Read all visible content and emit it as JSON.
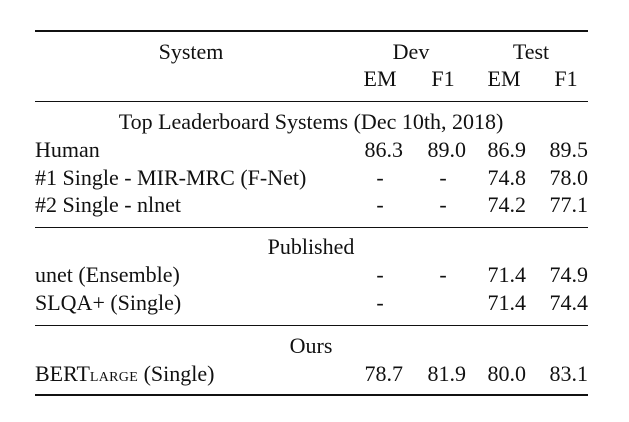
{
  "header": {
    "system": "System",
    "dev": "Dev",
    "test": "Test",
    "em1": "EM",
    "f1a": "F1",
    "em2": "EM",
    "f1b": "F1"
  },
  "sections": [
    {
      "title": "Top Leaderboard Systems (Dec 10th, 2018)",
      "rows": [
        {
          "system": "Human",
          "dev_em": "86.3",
          "dev_f1": "89.0",
          "test_em": "86.9",
          "test_f1": "89.5"
        },
        {
          "system": "#1 Single - MIR-MRC (F-Net)",
          "dev_em": "-",
          "dev_f1": "-",
          "test_em": "74.8",
          "test_f1": "78.0"
        },
        {
          "system": "#2 Single - nlnet",
          "dev_em": "-",
          "dev_f1": "-",
          "test_em": "74.2",
          "test_f1": "77.1"
        }
      ]
    },
    {
      "title": "Published",
      "rows": [
        {
          "system": "unet (Ensemble)",
          "dev_em": "-",
          "dev_f1": "-",
          "test_em": "71.4",
          "test_f1": "74.9"
        },
        {
          "system": "SLQA+ (Single)",
          "dev_em": "-",
          "dev_f1": "",
          "test_em": "71.4",
          "test_f1": "74.4"
        }
      ]
    },
    {
      "title": "Ours",
      "rows": [
        {
          "system_base": "BERT",
          "system_sub": "LARGE",
          "system_suffix": " (Single)",
          "dev_em": "78.7",
          "dev_f1": "81.9",
          "test_em": "80.0",
          "test_f1": "83.1"
        }
      ]
    }
  ]
}
